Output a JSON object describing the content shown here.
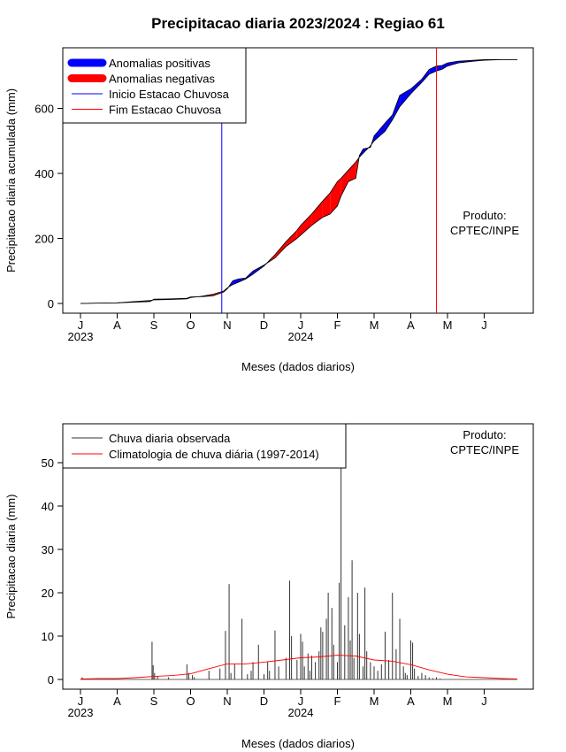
{
  "title": "Precipitacao diaria 2023/2024 : Regiao 61",
  "chart_data": [
    {
      "type": "area",
      "ylabel": "Precipitacao diaria acumulada (mm)",
      "xlabel": "Meses (dados diarios)",
      "ylim": [
        0,
        750
      ],
      "yticks": [
        0,
        200,
        400,
        600
      ],
      "month_ticks": [
        "J",
        "A",
        "S",
        "O",
        "N",
        "D",
        "J",
        "F",
        "M",
        "A",
        "M",
        "J"
      ],
      "year_labels": [
        {
          "text": "2023",
          "month": 0
        },
        {
          "text": "2024",
          "month": 6
        }
      ],
      "annotation": [
        "Produto:",
        "CPTEC/INPE"
      ],
      "legend": [
        {
          "label": "Anomalias positivas",
          "color": "#0000ff"
        },
        {
          "label": "Anomalias negativas",
          "color": "#ff0000"
        },
        {
          "label": "Inicio Estacao Chuvosa",
          "color": "#0000ff"
        },
        {
          "label": "Fim Estacao Chuvosa",
          "color": "#ff0000"
        }
      ],
      "rainy_season_start_month": 3.85,
      "rainy_season_end_month": 9.7,
      "series": [
        {
          "name": "Observed accumulated",
          "x": [
            0,
            0.5,
            1,
            1.5,
            1.9,
            2,
            2.4,
            2.9,
            3,
            3.3,
            3.6,
            3.9,
            4,
            4.15,
            4.3,
            4.5,
            4.7,
            5,
            5.3,
            5.6,
            5.9,
            6,
            6.3,
            6.6,
            6.8,
            7,
            7.1,
            7.3,
            7.5,
            7.6,
            7.7,
            7.9,
            8,
            8.3,
            8.5,
            8.7,
            9,
            9.3,
            9.5,
            9.7,
            9.85,
            10,
            10.3,
            10.7,
            11,
            11.5,
            11.9
          ],
          "y": [
            0,
            1,
            2,
            4,
            6,
            13,
            14,
            16,
            20,
            21,
            23,
            35,
            45,
            70,
            75,
            78,
            100,
            118,
            140,
            175,
            200,
            210,
            240,
            265,
            275,
            300,
            330,
            375,
            385,
            455,
            475,
            480,
            515,
            555,
            580,
            640,
            660,
            690,
            720,
            730,
            732,
            740,
            745,
            748,
            750,
            750,
            750
          ]
        },
        {
          "name": "Climatological accumulated",
          "x": [
            0,
            0.5,
            1,
            1.5,
            1.9,
            2,
            2.4,
            2.9,
            3,
            3.3,
            3.6,
            3.9,
            4,
            4.15,
            4.3,
            4.5,
            4.7,
            5,
            5.3,
            5.6,
            5.9,
            6,
            6.3,
            6.6,
            6.8,
            7,
            7.1,
            7.3,
            7.5,
            7.6,
            7.7,
            7.9,
            8,
            8.3,
            8.5,
            8.7,
            9,
            9.3,
            9.5,
            9.7,
            9.85,
            10,
            10.3,
            10.7,
            11,
            11.5,
            11.9
          ],
          "y": [
            0,
            1,
            2,
            6,
            9,
            11,
            12,
            14,
            18,
            22,
            28,
            38,
            48,
            58,
            65,
            75,
            90,
            115,
            150,
            190,
            225,
            240,
            275,
            315,
            340,
            375,
            385,
            410,
            435,
            450,
            462,
            485,
            500,
            530,
            565,
            605,
            645,
            680,
            705,
            715,
            720,
            730,
            740,
            745,
            748,
            750,
            750
          ]
        }
      ]
    },
    {
      "type": "bar",
      "ylabel": "Precipitacao diaria (mm)",
      "xlabel": "Meses (dados diarios)",
      "ylim": [
        0,
        55
      ],
      "yticks": [
        0,
        10,
        20,
        30,
        40,
        50
      ],
      "month_ticks": [
        "J",
        "A",
        "S",
        "O",
        "N",
        "D",
        "J",
        "F",
        "M",
        "A",
        "M",
        "J"
      ],
      "year_labels": [
        {
          "text": "2023",
          "month": 0
        },
        {
          "text": "2024",
          "month": 6
        }
      ],
      "annotation": [
        "Produto:",
        "CPTEC/INPE"
      ],
      "legend": [
        {
          "label": "Chuva diaria observada",
          "color": "#333333"
        },
        {
          "label": "Climatologia de chuva diária (1997-2014)",
          "color": "#ff0000"
        }
      ],
      "series": [
        {
          "name": "Chuva diaria observada",
          "x": [
            0.05,
            1.95,
            1.98,
            2.02,
            2.1,
            2.4,
            2.9,
            2.95,
            3.05,
            3.1,
            3.5,
            3.8,
            3.95,
            4.05,
            4.1,
            4.2,
            4.4,
            4.55,
            4.65,
            4.7,
            4.85,
            5.0,
            5.1,
            5.15,
            5.3,
            5.4,
            5.6,
            5.7,
            5.75,
            5.9,
            6.0,
            6.05,
            6.1,
            6.2,
            6.25,
            6.3,
            6.4,
            6.5,
            6.55,
            6.6,
            6.7,
            6.75,
            6.85,
            6.9,
            7.0,
            7.05,
            7.1,
            7.2,
            7.3,
            7.35,
            7.4,
            7.45,
            7.55,
            7.6,
            7.7,
            7.75,
            7.8,
            7.9,
            8.0,
            8.1,
            8.2,
            8.3,
            8.4,
            8.5,
            8.6,
            8.7,
            8.8,
            8.85,
            8.9,
            9.0,
            9.05,
            9.1,
            9.2,
            9.3,
            9.4,
            9.5,
            9.6,
            9.7,
            9.8
          ],
          "y": [
            0.5,
            8.7,
            3.3,
            1.5,
            0.8,
            0.5,
            3.5,
            1.5,
            1.0,
            0.5,
            2.0,
            2.5,
            11.2,
            22.0,
            1.5,
            3.5,
            14.0,
            1.2,
            2.0,
            4.0,
            8.0,
            1.2,
            4.0,
            2.0,
            11.3,
            3.0,
            5.0,
            22.8,
            10.0,
            4.5,
            10.5,
            8.7,
            3.0,
            6.0,
            2.0,
            5.5,
            4.0,
            6.5,
            12.0,
            11.0,
            14.0,
            20.0,
            16.5,
            8.0,
            4.0,
            22.3,
            56.7,
            12.5,
            19.0,
            9.0,
            27.5,
            5.0,
            20.0,
            10.5,
            3.0,
            21.2,
            6.5,
            4.0,
            3.0,
            2.0,
            3.5,
            11.0,
            4.5,
            20.0,
            7.0,
            14.0,
            3.0,
            1.5,
            1.0,
            9.0,
            8.5,
            2.5,
            0.8,
            1.5,
            1.0,
            0.5,
            0.3,
            0.5,
            0.2
          ]
        },
        {
          "name": "Climatologia de chuva diária (1997-2014)",
          "x": [
            0,
            0.5,
            1,
            1.5,
            2,
            2.5,
            3,
            3.5,
            4,
            4.5,
            5,
            5.5,
            6,
            6.5,
            7,
            7.5,
            8,
            8.5,
            9,
            9.5,
            10,
            10.5,
            11,
            11.5,
            11.9
          ],
          "y": [
            0.1,
            0.2,
            0.2,
            0.4,
            0.7,
            0.9,
            1.3,
            2.5,
            3.6,
            3.6,
            4.0,
            4.5,
            5.0,
            5.2,
            5.6,
            5.4,
            4.5,
            4.2,
            3.4,
            2.2,
            1.2,
            0.6,
            0.4,
            0.2,
            0.1
          ]
        }
      ]
    }
  ]
}
